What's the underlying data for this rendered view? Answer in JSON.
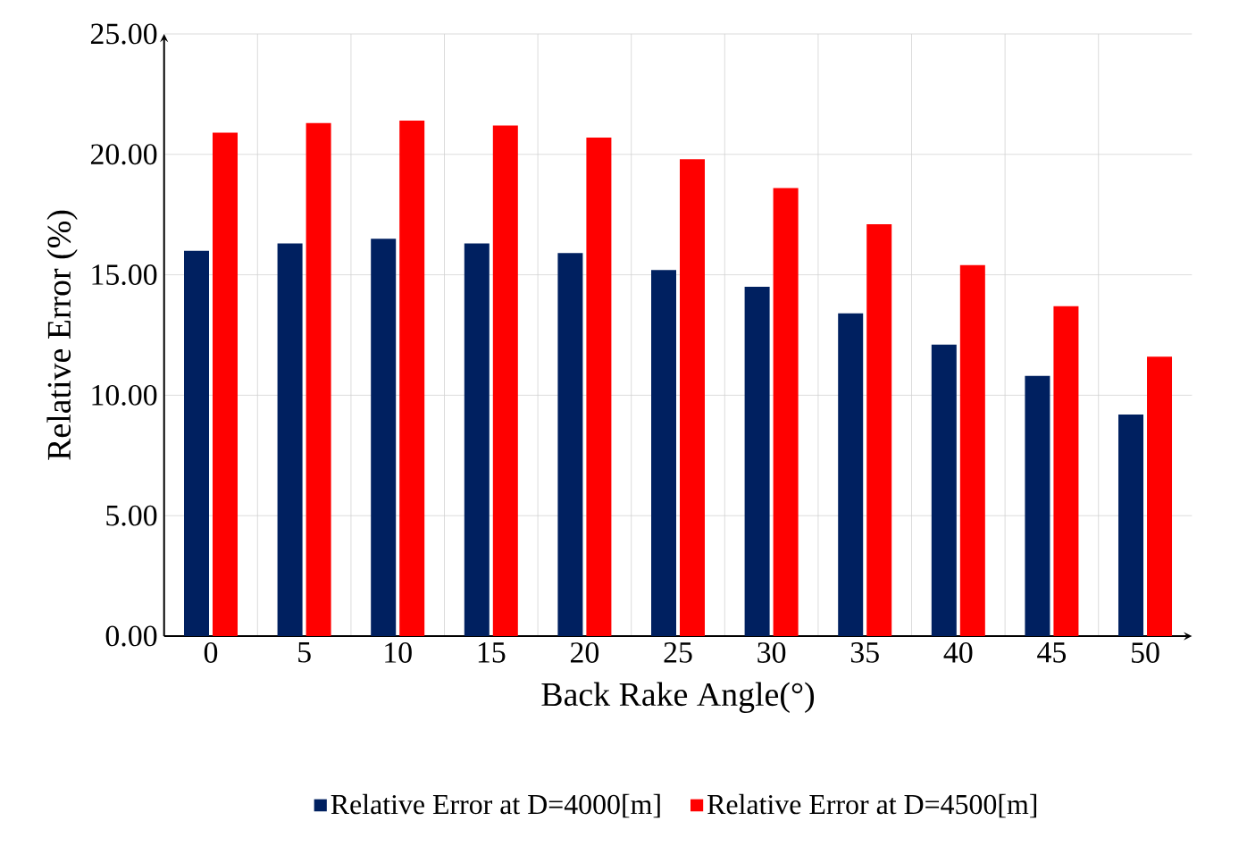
{
  "chart_data": {
    "type": "bar",
    "xlabel": "Back Rake Angle(°)",
    "ylabel": "Relative Error (%)",
    "categories": [
      "0",
      "5",
      "10",
      "15",
      "20",
      "25",
      "30",
      "35",
      "40",
      "45",
      "50"
    ],
    "series": [
      {
        "name": "Relative Error at D=4000[m]",
        "color": "#002060",
        "values": [
          16.0,
          16.3,
          16.5,
          16.3,
          15.9,
          15.2,
          14.5,
          13.4,
          12.1,
          10.8,
          9.2
        ]
      },
      {
        "name": "Relative Error at D=4500[m]",
        "color": "#ff0000",
        "values": [
          20.9,
          21.3,
          21.4,
          21.2,
          20.7,
          19.8,
          18.6,
          17.1,
          15.4,
          13.7,
          11.6
        ]
      }
    ],
    "ylim": [
      0,
      25
    ],
    "yticks": [
      {
        "value": 0,
        "label": "0.00"
      },
      {
        "value": 5,
        "label": "5.00"
      },
      {
        "value": 10,
        "label": "10.00"
      },
      {
        "value": 15,
        "label": "15.00"
      },
      {
        "value": 20,
        "label": "20.00"
      },
      {
        "value": 25,
        "label": "25.00"
      }
    ],
    "grid": true,
    "legend": "bottom"
  }
}
